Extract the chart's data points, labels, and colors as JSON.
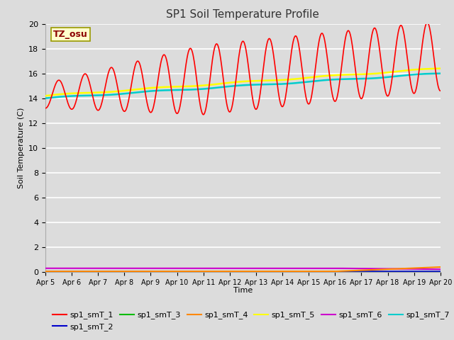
{
  "title": "SP1 Soil Temperature Profile",
  "xlabel": "Time",
  "ylabel": "Soil Temperature (C)",
  "ylim": [
    0,
    20
  ],
  "x_tick_labels": [
    "Apr 5",
    "Apr 6",
    "Apr 7",
    "Apr 8",
    "Apr 9",
    "Apr 10",
    "Apr 11",
    "Apr 12",
    "Apr 13",
    "Apr 14",
    "Apr 15",
    "Apr 16",
    "Apr 17",
    "Apr 18",
    "Apr 19",
    "Apr 20"
  ],
  "annotation_text": "TZ_osu",
  "annotation_color": "#8B0000",
  "annotation_bg": "#FFFFCC",
  "annotation_border": "#999900",
  "series_colors": {
    "sp1_smT_1": "#FF0000",
    "sp1_smT_2": "#0000CC",
    "sp1_smT_3": "#00BB00",
    "sp1_smT_4": "#FF8800",
    "sp1_smT_5": "#FFFF00",
    "sp1_smT_6": "#CC00CC",
    "sp1_smT_7": "#00CCCC"
  },
  "bg_color": "#DCDCDC",
  "grid_color": "#FFFFFF"
}
